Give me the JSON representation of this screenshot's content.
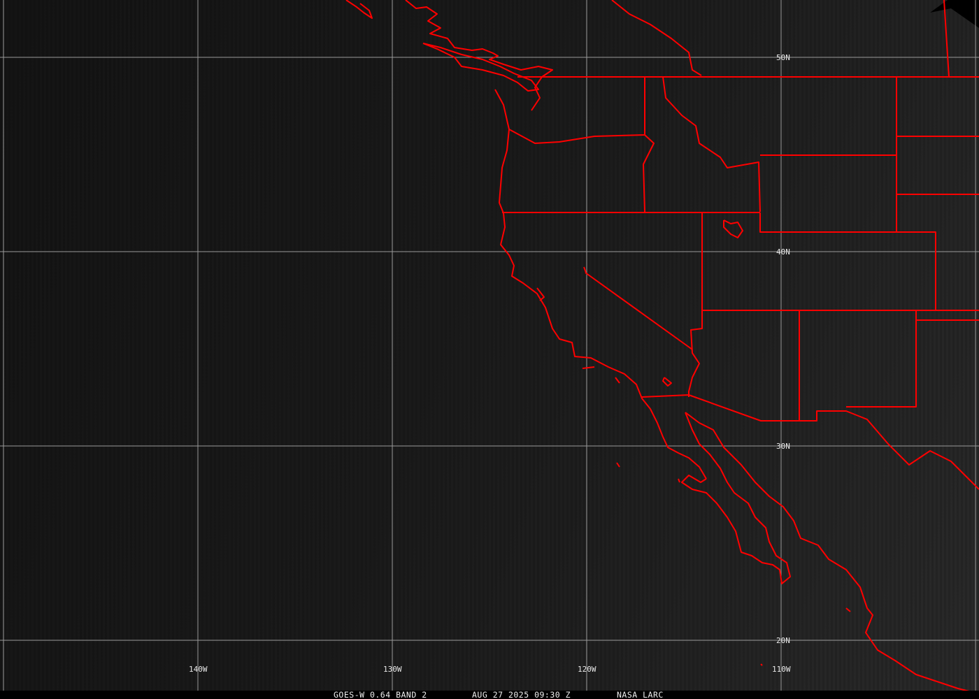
{
  "map": {
    "latitude_labels": [
      "50N",
      "40N",
      "30N",
      "20N"
    ],
    "longitude_labels": [
      "140W",
      "130W",
      "120W",
      "110W"
    ],
    "colors": {
      "boundaries": "#ff0000",
      "grid": "#9a9a9a",
      "background": "#1a1a1a",
      "text": "#eeeeee"
    }
  },
  "caption": {
    "product": "GOES-W 0.64 BAND 2",
    "datetime": "AUG 27 2025 09:30 Z",
    "source": "NASA LARC"
  }
}
